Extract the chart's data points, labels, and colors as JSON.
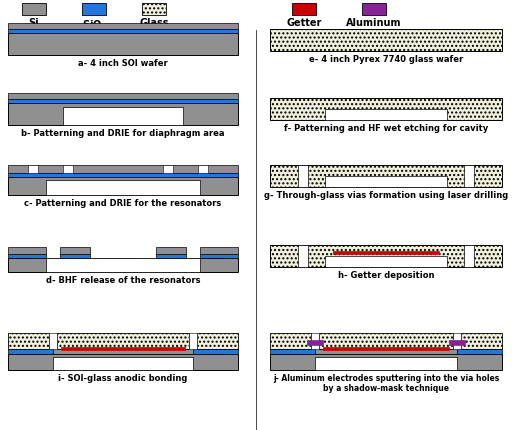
{
  "colors": {
    "si": "#909090",
    "sio2": "#2277DD",
    "glass_face": "#F0F0DC",
    "getter": "#CC0000",
    "aluminum": "#882299",
    "white": "#FFFFFF",
    "black": "#000000"
  },
  "panels": {
    "a": "a- 4 inch SOI wafer",
    "b": "b- Patterning and DRIE for diaphragm area",
    "c": "c- Patterning and DRIE for the resonators",
    "d": "d- BHF release of the resonators",
    "e": "e- 4 inch Pyrex 7740 glass wafer",
    "f": "f- Patterning and HF wet etching for cavity",
    "g": "g- Through-glass vias formation using laser drilling",
    "h": "h- Getter deposition",
    "i": "i- SOI-glass anodic bonding",
    "j": "j- Aluminum electrodes sputtering into the via holes\nby a shadow-mask technique"
  },
  "legend": {
    "si_label": "Si",
    "sio2_label": "SiO$_2$",
    "glass_label": "Glass",
    "getter_label": "Getter",
    "al_label": "Aluminum"
  }
}
